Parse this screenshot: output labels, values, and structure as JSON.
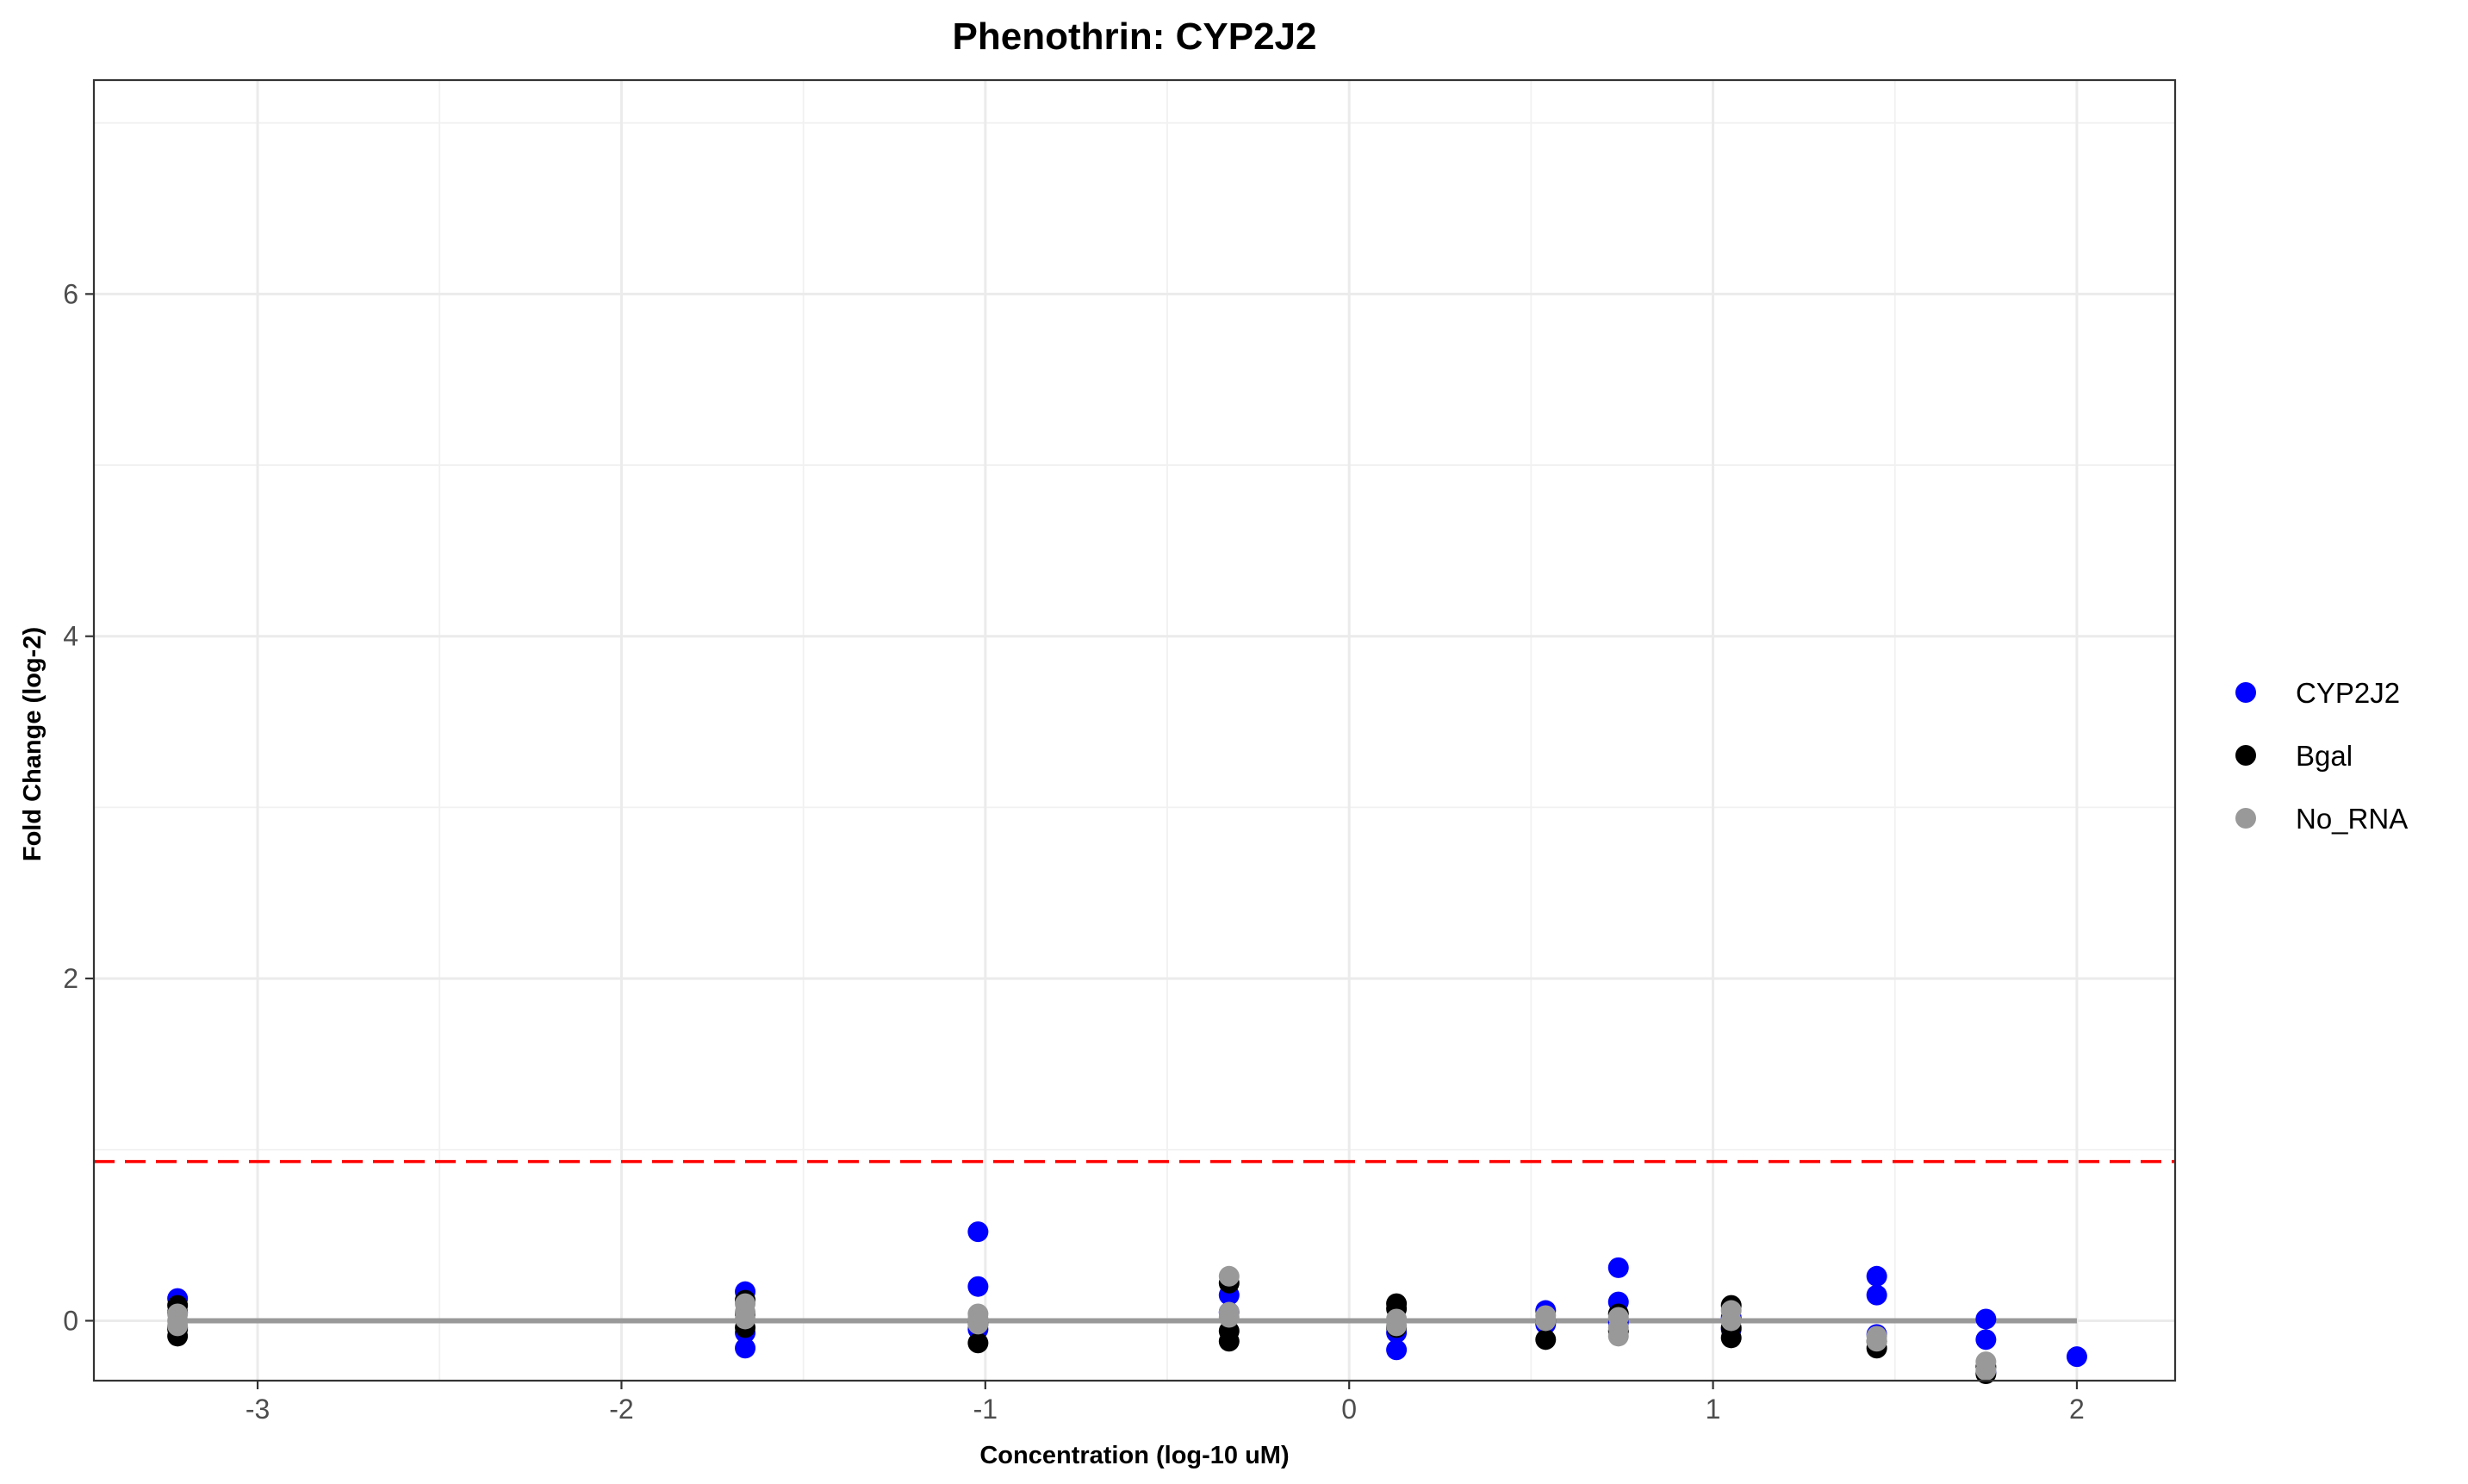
{
  "chart_data": {
    "type": "scatter",
    "title": "Phenothrin: CYP2J2",
    "xlabel": "Concentration (log-10 uM)",
    "ylabel": "Fold Change (log-2)",
    "xlim": [
      -3.45,
      2.27
    ],
    "ylim": [
      -0.35,
      7.25
    ],
    "x_ticks": [
      -3,
      -2,
      -1,
      0,
      1,
      2
    ],
    "x_tick_labels": [
      "-3",
      "-2",
      "-1",
      "0",
      "1",
      "2"
    ],
    "y_ticks": [
      0,
      2,
      4,
      6
    ],
    "y_tick_labels": [
      "0",
      "2",
      "4",
      "6"
    ],
    "grid": true,
    "legend_position": "right",
    "threshold_line": {
      "y": 0.93,
      "color": "#ff0000",
      "style": "dashed"
    },
    "fit_line": {
      "x": [
        -3.22,
        2.0
      ],
      "y": [
        0.0,
        0.0
      ],
      "color": "#999999"
    },
    "series": [
      {
        "name": "CYP2J2",
        "color": "#0000ff",
        "points": [
          [
            -3.22,
            0.13
          ],
          [
            -3.22,
            0.05
          ],
          [
            -3.22,
            -0.05
          ],
          [
            -1.66,
            0.17
          ],
          [
            -1.66,
            -0.07
          ],
          [
            -1.66,
            -0.16
          ],
          [
            -1.02,
            0.52
          ],
          [
            -1.02,
            0.2
          ],
          [
            -1.02,
            -0.05
          ],
          [
            -0.33,
            0.15
          ],
          [
            -0.33,
            0.05
          ],
          [
            0.13,
            -0.17
          ],
          [
            0.13,
            -0.07
          ],
          [
            0.54,
            0.06
          ],
          [
            0.54,
            -0.02
          ],
          [
            0.74,
            0.31
          ],
          [
            0.74,
            0.11
          ],
          [
            0.74,
            -0.01
          ],
          [
            1.05,
            0.02
          ],
          [
            1.05,
            -0.05
          ],
          [
            1.45,
            0.26
          ],
          [
            1.45,
            0.15
          ],
          [
            1.45,
            -0.08
          ],
          [
            1.75,
            0.01
          ],
          [
            1.75,
            -0.11
          ],
          [
            1.75,
            -0.3
          ],
          [
            2.0,
            -0.21
          ]
        ]
      },
      {
        "name": "Bgal",
        "color": "#000000",
        "points": [
          [
            -3.22,
            0.09
          ],
          [
            -3.22,
            -0.04
          ],
          [
            -3.22,
            -0.09
          ],
          [
            -1.66,
            0.12
          ],
          [
            -1.66,
            0.04
          ],
          [
            -1.66,
            -0.04
          ],
          [
            -1.02,
            -0.02
          ],
          [
            -1.02,
            -0.13
          ],
          [
            -0.33,
            0.22
          ],
          [
            -0.33,
            -0.06
          ],
          [
            -0.33,
            -0.12
          ],
          [
            0.13,
            0.1
          ],
          [
            0.13,
            0.07
          ],
          [
            0.13,
            -0.04
          ],
          [
            0.54,
            0.0
          ],
          [
            0.54,
            -0.11
          ],
          [
            0.74,
            0.04
          ],
          [
            0.74,
            -0.06
          ],
          [
            1.05,
            0.09
          ],
          [
            1.05,
            -0.04
          ],
          [
            1.05,
            -0.1
          ],
          [
            1.45,
            -0.12
          ],
          [
            1.45,
            -0.16
          ],
          [
            1.75,
            -0.27
          ],
          [
            1.75,
            -0.31
          ]
        ]
      },
      {
        "name": "No_RNA",
        "color": "#999999",
        "points": [
          [
            -3.22,
            0.04
          ],
          [
            -3.22,
            0.0
          ],
          [
            -3.22,
            -0.03
          ],
          [
            -1.66,
            0.1
          ],
          [
            -1.66,
            0.05
          ],
          [
            -1.66,
            0.01
          ],
          [
            -1.02,
            0.04
          ],
          [
            -1.02,
            0.01
          ],
          [
            -1.02,
            -0.02
          ],
          [
            -0.33,
            0.26
          ],
          [
            -0.33,
            0.05
          ],
          [
            -0.33,
            0.02
          ],
          [
            0.13,
            0.01
          ],
          [
            0.13,
            -0.03
          ],
          [
            0.54,
            0.03
          ],
          [
            0.54,
            0.0
          ],
          [
            0.74,
            0.02
          ],
          [
            0.74,
            -0.04
          ],
          [
            0.74,
            -0.09
          ],
          [
            1.05,
            0.06
          ],
          [
            1.05,
            0.0
          ],
          [
            1.45,
            -0.09
          ],
          [
            1.45,
            -0.12
          ],
          [
            1.75,
            -0.24
          ],
          [
            1.75,
            -0.29
          ]
        ]
      }
    ]
  }
}
